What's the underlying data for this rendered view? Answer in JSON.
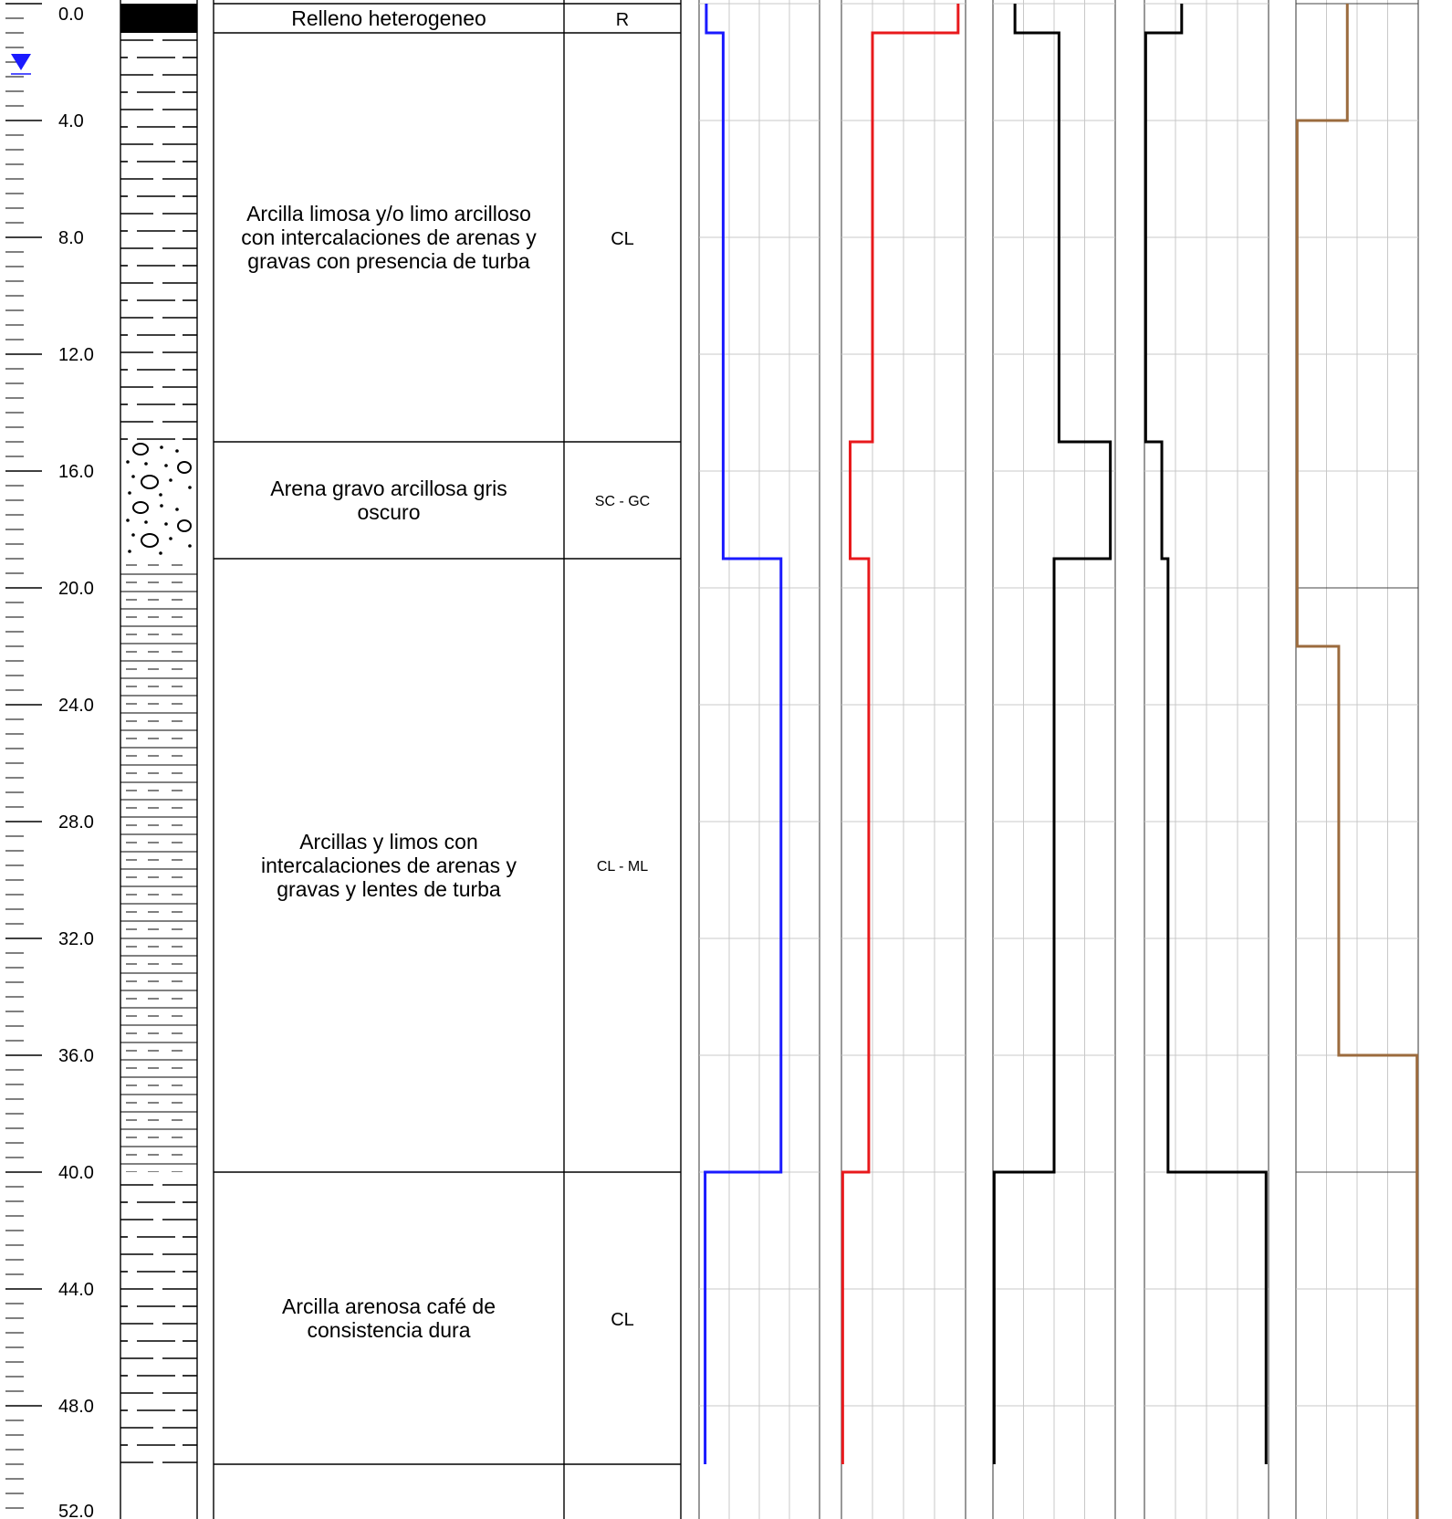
{
  "depth_axis": {
    "labels": [
      "0.0",
      "4.0",
      "8.0",
      "12.0",
      "16.0",
      "20.0",
      "24.0",
      "28.0",
      "32.0",
      "36.0",
      "40.0",
      "44.0",
      "48.0",
      "52.0"
    ],
    "max_depth": 52,
    "water_table_depth": 2.0,
    "water_table_color": "#1a1aff"
  },
  "strata": [
    {
      "top": 0.0,
      "bottom": 1.0,
      "pattern": "fill",
      "description": [
        "Relleno heterogeneo"
      ],
      "uscs": "R"
    },
    {
      "top": 1.0,
      "bottom": 15.0,
      "pattern": "clay",
      "description": [
        "Arcilla limosa y/o limo arcilloso",
        "con intercalaciones de arenas y",
        "gravas con  presencia de turba"
      ],
      "uscs": "CL"
    },
    {
      "top": 15.0,
      "bottom": 19.0,
      "pattern": "gravel-sand",
      "description": [
        "Arena gravo arcillosa gris",
        "oscuro"
      ],
      "uscs": "SC - GC"
    },
    {
      "top": 19.0,
      "bottom": 40.0,
      "pattern": "silt-clay",
      "description": [
        "Arcillas y limos con",
        "intercalaciones de arenas y",
        "gravas y lentes de turba"
      ],
      "uscs": "CL - ML"
    },
    {
      "top": 40.0,
      "bottom": 50.0,
      "pattern": "clay",
      "description": [
        "Arcilla arenosa café de",
        "consistencia dura"
      ],
      "uscs": "CL"
    }
  ],
  "chart_data": {
    "type": "line",
    "note_axis": "depth (m), profiles are step functions across 6 graph columns",
    "series": [
      {
        "color": "#1a1aff",
        "steps": [
          [
            0.0,
            0.06
          ],
          [
            1.0,
            0.2
          ],
          [
            15.0,
            0.2
          ],
          [
            19.0,
            0.68
          ],
          [
            40.0,
            0.05
          ],
          [
            50.0,
            0.05
          ]
        ]
      },
      {
        "color": "#e8191c",
        "steps": [
          [
            0.0,
            0.94
          ],
          [
            1.0,
            0.25
          ],
          [
            15.0,
            0.07
          ],
          [
            19.0,
            0.22
          ],
          [
            40.0,
            0.01
          ],
          [
            50.0,
            0.01
          ]
        ]
      },
      {
        "color": "#000000",
        "steps": [
          [
            0.0,
            0.18
          ],
          [
            1.0,
            0.54
          ],
          [
            15.0,
            0.96
          ],
          [
            19.0,
            0.5
          ],
          [
            40.0,
            0.01
          ],
          [
            50.0,
            0.01
          ]
        ]
      },
      {
        "color": "#000000",
        "steps": [
          [
            0.0,
            0.3
          ],
          [
            1.0,
            0.01
          ],
          [
            15.0,
            0.14
          ],
          [
            19.0,
            0.19
          ],
          [
            40.0,
            0.98
          ],
          [
            50.0,
            0.98
          ]
        ]
      },
      {
        "color": "#9b6b3e",
        "steps": [
          [
            0.0,
            0.42
          ],
          [
            4.0,
            0.01
          ],
          [
            22.0,
            0.35
          ],
          [
            36.0,
            0.99
          ],
          [
            52.0,
            0.99
          ]
        ]
      }
    ]
  }
}
